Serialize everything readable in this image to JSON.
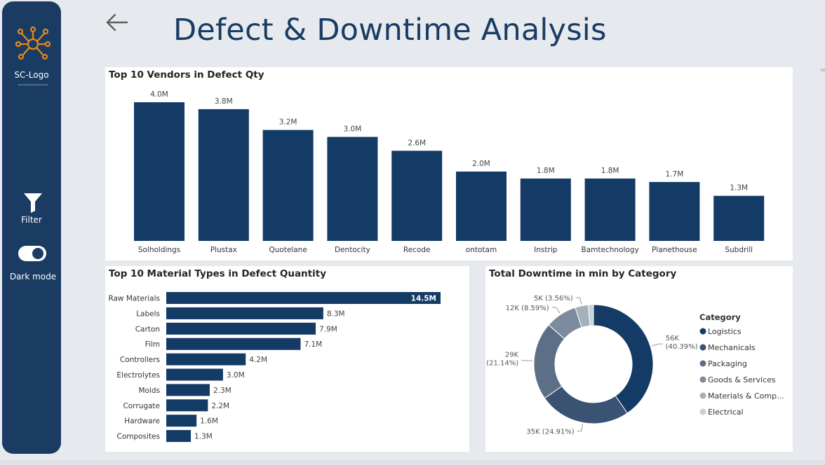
{
  "sidebar": {
    "logo_label": "SC-Logo",
    "logo_dashes": "------------",
    "filter_label": "Filter",
    "dark_mode_label": "Dark mode",
    "dark_mode_on": true
  },
  "header": {
    "title": "Defect & Downtime Analysis"
  },
  "colors": {
    "navy": "#133b65",
    "sidebar": "#1a3c63",
    "donut": [
      "#133b65",
      "#3b5373",
      "#5c6f87",
      "#7d8b9e",
      "#a5b0bd",
      "#c9d0d9"
    ]
  },
  "chart_data": [
    {
      "type": "bar",
      "title": "Top 10 Vendors in Defect Qty",
      "categories": [
        "Solholdings",
        "Plustax",
        "Quotelane",
        "Dentocity",
        "Recode",
        "ontotam",
        "Instrip",
        "Bamtechnology",
        "Planethouse",
        "Subdrill"
      ],
      "values": [
        4.0,
        3.8,
        3.2,
        3.0,
        2.6,
        2.0,
        1.8,
        1.8,
        1.7,
        1.3
      ],
      "data_labels": [
        "4.0M",
        "3.8M",
        "3.2M",
        "3.0M",
        "2.6M",
        "2.0M",
        "1.8M",
        "1.8M",
        "1.7M",
        "1.3M"
      ],
      "unit": "M",
      "ylim": [
        0,
        4.0
      ]
    },
    {
      "type": "bar",
      "orientation": "horizontal",
      "title": "Top 10 Material Types in Defect Quantity",
      "categories": [
        "Raw Materials",
        "Labels",
        "Carton",
        "Film",
        "Controllers",
        "Electrolytes",
        "Molds",
        "Corrugate",
        "Hardware",
        "Composites"
      ],
      "values": [
        14.5,
        8.3,
        7.9,
        7.1,
        4.2,
        3.0,
        2.3,
        2.2,
        1.6,
        1.3
      ],
      "data_labels": [
        "14.5M",
        "8.3M",
        "7.9M",
        "7.1M",
        "4.2M",
        "3.0M",
        "2.3M",
        "2.2M",
        "1.6M",
        "1.3M"
      ],
      "unit": "M",
      "xlim": [
        0,
        14.5
      ]
    },
    {
      "type": "pie",
      "donut": true,
      "title": "Total Downtime in min by Category",
      "legend_title": "Category",
      "legend_position": "right",
      "categories": [
        "Logistics",
        "Mechanicals",
        "Packaging",
        "Goods & Services",
        "Materials & Comp...",
        "Electrical"
      ],
      "values": [
        56,
        35,
        29,
        12,
        5,
        1
      ],
      "percents": [
        40.39,
        24.91,
        21.14,
        8.59,
        3.56,
        1.41
      ],
      "labels": [
        [
          "56K",
          "(40.39%)"
        ],
        [
          "35K (24.91%)"
        ],
        [
          "29K",
          "(21.14%)"
        ],
        [
          "12K (8.59%)"
        ],
        [
          "5K (3.56%)"
        ],
        null
      ]
    }
  ]
}
